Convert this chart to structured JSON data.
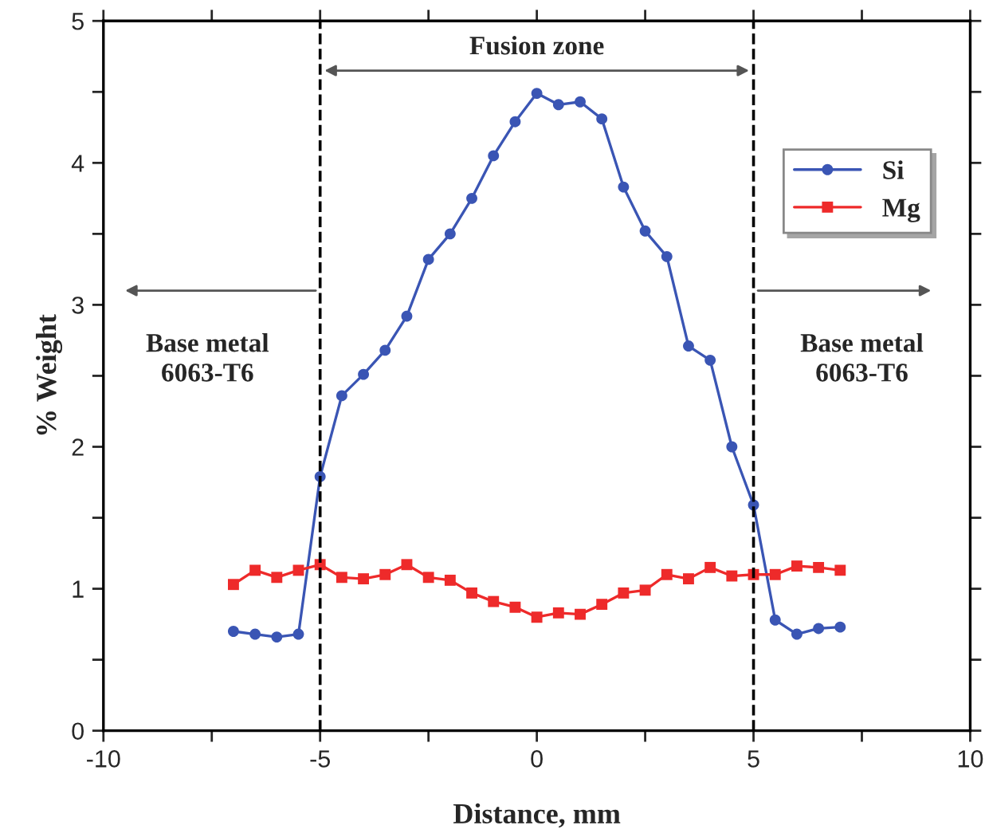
{
  "chart_data": {
    "type": "line",
    "xlabel": "Distance, mm",
    "ylabel": "% Weight",
    "x": [
      -7,
      -6.5,
      -6,
      -5.5,
      -5,
      -4.5,
      -4,
      -3.5,
      -3,
      -2.5,
      -2,
      -1.5,
      -1,
      -0.5,
      0,
      0.5,
      1,
      1.5,
      2,
      2.5,
      3,
      3.5,
      4,
      4.5,
      5,
      5.5,
      6,
      6.5,
      7
    ],
    "series": [
      {
        "name": "Si",
        "color": "#3a55b4",
        "marker": "circle",
        "values": [
          0.7,
          0.68,
          0.66,
          0.68,
          1.79,
          2.36,
          2.51,
          2.68,
          2.92,
          3.32,
          3.5,
          3.75,
          4.05,
          4.29,
          4.49,
          4.41,
          4.43,
          4.31,
          3.83,
          3.52,
          3.34,
          2.71,
          2.61,
          2.0,
          1.59,
          0.78,
          0.68,
          0.72,
          0.73
        ]
      },
      {
        "name": "Mg",
        "color": "#ee2a2a",
        "marker": "square",
        "values": [
          1.03,
          1.13,
          1.08,
          1.13,
          1.17,
          1.08,
          1.07,
          1.1,
          1.17,
          1.08,
          1.06,
          0.97,
          0.91,
          0.87,
          0.8,
          0.83,
          0.82,
          0.89,
          0.97,
          0.99,
          1.1,
          1.07,
          1.15,
          1.09,
          1.1,
          1.1,
          1.16,
          1.15,
          1.13
        ]
      }
    ],
    "xlim": [
      -10,
      10
    ],
    "xticks": [
      -10,
      {
        "value": -7.5,
        "label": null
      },
      -5,
      {
        "value": -2.5,
        "label": null
      },
      0,
      {
        "value": 2.5,
        "label": null
      },
      5,
      {
        "value": 7.5,
        "label": null
      },
      10
    ],
    "ylim": [
      0,
      5
    ],
    "yticks": [
      0,
      {
        "value": 0.5,
        "label": null
      },
      1,
      {
        "value": 1.5,
        "label": null
      },
      2,
      {
        "value": 2.5,
        "label": null
      },
      3,
      {
        "value": 3.5,
        "label": null
      },
      4,
      {
        "value": 4.5,
        "label": null
      },
      5
    ],
    "ref_lines": [
      {
        "axis": "x",
        "value": -5,
        "color": "#000000",
        "line_style": "dashed"
      },
      {
        "axis": "x",
        "value": 5,
        "color": "#000000",
        "line_style": "dashed"
      }
    ],
    "annotations": [
      "Fusion zone",
      "Base metal\n6063-T6",
      "Base metal\n6063-T6"
    ],
    "legend": "right",
    "grid": false,
    "line_style": "solid"
  }
}
